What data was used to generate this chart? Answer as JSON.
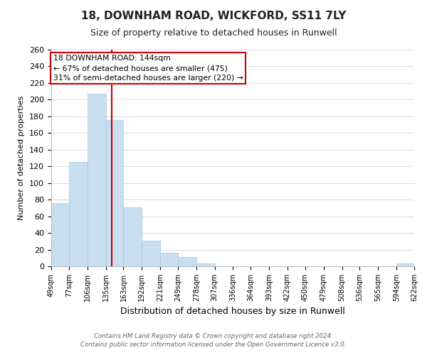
{
  "title": "18, DOWNHAM ROAD, WICKFORD, SS11 7LY",
  "subtitle": "Size of property relative to detached houses in Runwell",
  "xlabel": "Distribution of detached houses by size in Runwell",
  "ylabel": "Number of detached properties",
  "bar_color": "#c8dff0",
  "bar_edge_color": "#a8c8e0",
  "bin_edges": [
    49,
    77,
    106,
    135,
    163,
    192,
    221,
    249,
    278,
    307,
    336,
    364,
    393,
    422,
    450,
    479,
    508,
    536,
    565,
    594,
    622
  ],
  "bar_heights": [
    76,
    125,
    207,
    176,
    71,
    31,
    16,
    11,
    3,
    0,
    0,
    0,
    0,
    0,
    0,
    0,
    0,
    0,
    0,
    3
  ],
  "tick_labels": [
    "49sqm",
    "77sqm",
    "106sqm",
    "135sqm",
    "163sqm",
    "192sqm",
    "221sqm",
    "249sqm",
    "278sqm",
    "307sqm",
    "336sqm",
    "364sqm",
    "393sqm",
    "422sqm",
    "450sqm",
    "479sqm",
    "508sqm",
    "536sqm",
    "565sqm",
    "594sqm",
    "622sqm"
  ],
  "vline_x": 144,
  "vline_color": "#cc0000",
  "annotation_title": "18 DOWNHAM ROAD: 144sqm",
  "annotation_line1": "← 67% of detached houses are smaller (475)",
  "annotation_line2": "31% of semi-detached houses are larger (220) →",
  "annotation_box_color": "#ffffff",
  "annotation_box_edge": "#cc0000",
  "ylim": [
    0,
    260
  ],
  "yticks": [
    0,
    20,
    40,
    60,
    80,
    100,
    120,
    140,
    160,
    180,
    200,
    220,
    240,
    260
  ],
  "footer_line1": "Contains HM Land Registry data © Crown copyright and database right 2024.",
  "footer_line2": "Contains public sector information licensed under the Open Government Licence v3.0.",
  "background_color": "#ffffff",
  "grid_color": "#d0d8e0"
}
